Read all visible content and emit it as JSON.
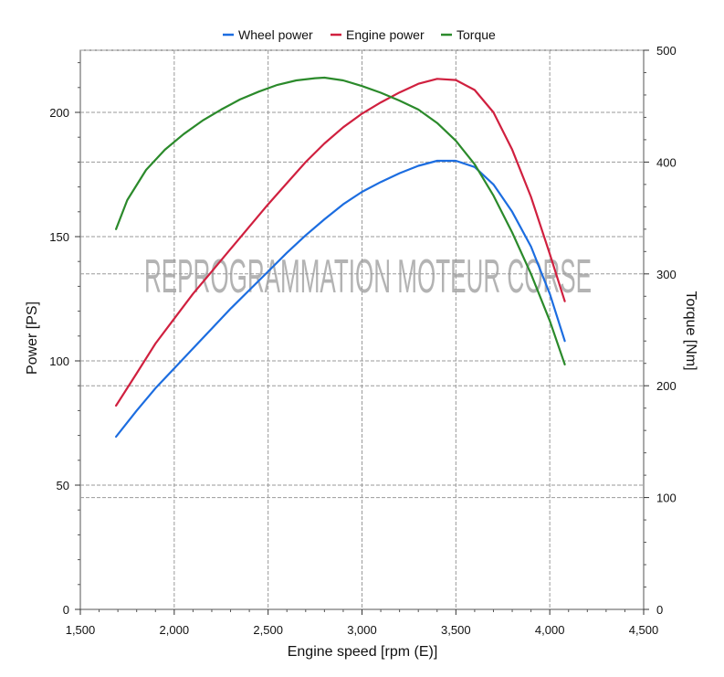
{
  "chart_data": {
    "type": "line",
    "xlabel": "Engine speed [rpm (E)]",
    "ylabel_left": "Power [PS]",
    "ylabel_right": "Torque [Nm]",
    "xlim": [
      1500,
      4500
    ],
    "ylim_left": [
      0,
      225
    ],
    "ylim_right": [
      0,
      500
    ],
    "x_ticks": [
      1500,
      2000,
      2500,
      3000,
      3500,
      4000,
      4500
    ],
    "x_tick_labels": [
      "1,500",
      "2,000",
      "2,500",
      "3,000",
      "3,500",
      "4,000",
      "4,500"
    ],
    "y_left_ticks": [
      0,
      50,
      100,
      150,
      200
    ],
    "y_left_tick_labels": [
      "0",
      "50",
      "100",
      "150",
      "200"
    ],
    "y_right_ticks": [
      0,
      100,
      200,
      300,
      400,
      500
    ],
    "y_right_tick_labels": [
      "0",
      "100",
      "200",
      "300",
      "400",
      "500"
    ],
    "grid": true,
    "legend_position": "top-center",
    "watermark": "REPROGRAMMATION MOTEUR CORSE",
    "series": [
      {
        "name": "Wheel power",
        "color": "#1c6de0",
        "axis": "left",
        "x": [
          1690,
          1800,
          1900,
          2000,
          2100,
          2200,
          2300,
          2400,
          2500,
          2600,
          2700,
          2800,
          2900,
          3000,
          3100,
          3200,
          3300,
          3400,
          3500,
          3600,
          3700,
          3800,
          3900,
          4000,
          4080
        ],
        "y": [
          69.5,
          80,
          89,
          97,
          105,
          113,
          121,
          128.5,
          136,
          143.5,
          150.5,
          157,
          163,
          168,
          172,
          175.5,
          178.5,
          180.5,
          180.5,
          178,
          171,
          160,
          146,
          127,
          108
        ]
      },
      {
        "name": "Engine power",
        "color": "#d0203f",
        "axis": "left",
        "x": [
          1690,
          1800,
          1900,
          2000,
          2100,
          2200,
          2300,
          2400,
          2500,
          2600,
          2700,
          2800,
          2900,
          3000,
          3100,
          3200,
          3300,
          3400,
          3500,
          3600,
          3700,
          3800,
          3900,
          4000,
          4080
        ],
        "y": [
          82,
          95,
          107,
          117,
          127,
          136,
          145,
          154,
          163,
          171.5,
          180,
          187.5,
          194,
          199.5,
          204,
          208,
          211.5,
          213.5,
          213,
          209,
          200,
          185,
          166,
          143,
          124
        ]
      },
      {
        "name": "Torque",
        "color": "#2b8a2b",
        "axis": "right",
        "x": [
          1690,
          1750,
          1850,
          1950,
          2050,
          2150,
          2250,
          2350,
          2450,
          2550,
          2650,
          2750,
          2800,
          2900,
          3000,
          3100,
          3200,
          3300,
          3400,
          3500,
          3600,
          3700,
          3800,
          3900,
          4000,
          4080
        ],
        "y": [
          340,
          366,
          393,
          411,
          425,
          437,
          447,
          456,
          463,
          469,
          473,
          475,
          475.5,
          473,
          468,
          462,
          455,
          447,
          435,
          419,
          398,
          370,
          337,
          300,
          258,
          219
        ]
      }
    ]
  }
}
